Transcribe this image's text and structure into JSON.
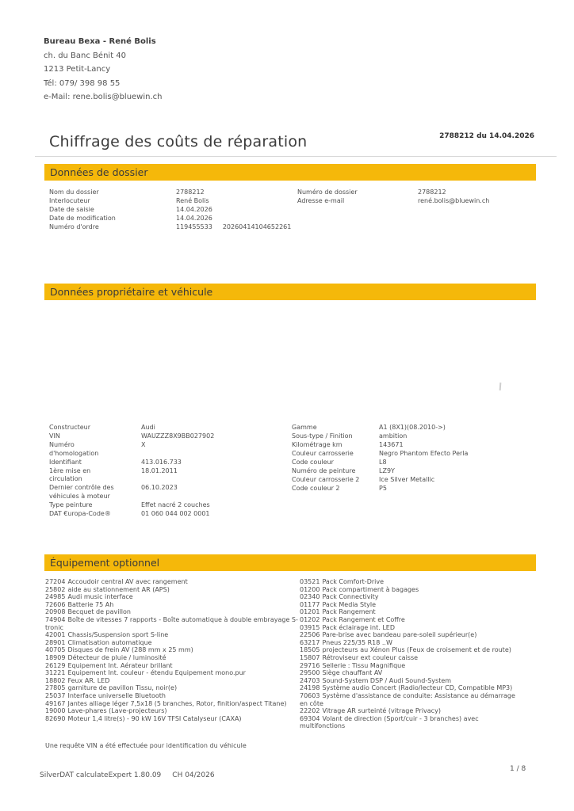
{
  "colors": {
    "accent_yellow": "#F5B80A",
    "section_heading_text": "#3A3A3A",
    "body_text": "#4F4F4F",
    "divider": "#D8D8D8"
  },
  "sender": {
    "name": "Bureau Bexa - René Bolis",
    "street": "ch. du Banc Bénit 40",
    "city": "1213 Petit-Lancy",
    "phone": "Tél: 079/ 398 98 55",
    "email": "e-Mail: rene.bolis@bluewin.ch"
  },
  "title": {
    "text": "Chiffrage des coûts de réparation",
    "reference": "2788212 du 14.04.2026"
  },
  "sections": {
    "dossier": {
      "heading": "Données de dossier",
      "fields_left": [
        {
          "label": "Nom du dossier",
          "value": "2788212",
          "value2": ""
        },
        {
          "label": "Interlocuteur",
          "value": "René Bolis",
          "value2": ""
        },
        {
          "label": "Date de saisie",
          "value": "14.04.2026",
          "value2": ""
        },
        {
          "label": "Date de modification",
          "value": "14.04.2026",
          "value2": ""
        },
        {
          "label": "Numéro d'ordre",
          "value": "119455533",
          "value2": "20260414104652261"
        }
      ],
      "fields_right": [
        {
          "label": "Numéro de dossier",
          "value": "2788212",
          "value2": ""
        },
        {
          "label": "Adresse e-mail",
          "value": "rené.bolis@bluewin.ch",
          "value2": ""
        }
      ]
    },
    "vehicle": {
      "heading": "Données propriétaire et véhicule",
      "fields_left": [
        {
          "label": "Constructeur",
          "value": "Audi",
          "value2": ""
        },
        {
          "label": "VIN",
          "value": "WAUZZZ8X9BB027902",
          "value2": ""
        },
        {
          "label": "Numéro d'homologation",
          "value": "X",
          "value2": ""
        },
        {
          "label": "Identifiant",
          "value": "413.016.733",
          "value2": ""
        },
        {
          "label": "1ère mise en circulation",
          "value": "18.01.2011",
          "value2": ""
        },
        {
          "label": "Dernier contrôle des véhicules à moteur",
          "value": "06.10.2023",
          "value2": ""
        },
        {
          "label": "Type peinture",
          "value": "Effet nacré 2 couches",
          "value2": ""
        },
        {
          "label": "DAT €uropa-Code®",
          "value": "01 060 044 002 0001",
          "value2": ""
        }
      ],
      "fields_right": [
        {
          "label": "Gamme",
          "value": "A1 (8X1)(08.2010->)",
          "value2": ""
        },
        {
          "label": "Sous-type / Finition",
          "value": "ambition",
          "value2": ""
        },
        {
          "label": "Kilométrage km",
          "value": "143671",
          "value2": ""
        },
        {
          "label": "Couleur carrosserie",
          "value": "Negro Phantom Efecto Perla",
          "value2": ""
        },
        {
          "label": "Code couleur",
          "value": "L8",
          "value2": ""
        },
        {
          "label": "Numéro de peinture",
          "value": "LZ9Y",
          "value2": ""
        },
        {
          "label": "Couleur carrosserie 2",
          "value": "Ice Silver Metallic",
          "value2": ""
        },
        {
          "label": "Code couleur 2",
          "value": "P5",
          "value2": ""
        }
      ]
    },
    "equipment": {
      "heading": "Équipement optionnel",
      "items_left": [
        {
          "code": "27204",
          "label": "Accoudoir central AV avec rangement"
        },
        {
          "code": "25802",
          "label": "aide au stationnement AR (APS)"
        },
        {
          "code": "24985",
          "label": "Audi music interface"
        },
        {
          "code": "72606",
          "label": "Batterie 75 Ah"
        },
        {
          "code": "20908",
          "label": "Becquet de pavillon"
        },
        {
          "code": "74904",
          "label": "Boîte de vitesses 7 rapports - Boîte automatique à double embrayage S-tronic"
        },
        {
          "code": "42001",
          "label": "Chassis/Suspension sport S-line"
        },
        {
          "code": "28901",
          "label": "Climatisation automatique"
        },
        {
          "code": "40705",
          "label": "Disques de frein AV (288 mm x 25 mm)"
        },
        {
          "code": "18909",
          "label": "Détecteur de pluie / luminosité"
        },
        {
          "code": "26129",
          "label": "Equipement Int. Aérateur brillant"
        },
        {
          "code": "31221",
          "label": "Equipement Int. couleur - étendu Equipement mono.pur"
        },
        {
          "code": "18802",
          "label": "Feux AR. LED"
        },
        {
          "code": "27805",
          "label": "garniture de pavillon Tissu, noir(e)"
        },
        {
          "code": "25037",
          "label": "Interface universelle Bluetooth"
        },
        {
          "code": "49167",
          "label": "Jantes alliage léger 7,5x18 (5 branches, Rotor, finition/aspect Titane)"
        },
        {
          "code": "19000",
          "label": "Lave-phares (Lave-projecteurs)"
        },
        {
          "code": "82690",
          "label": "Moteur 1,4 litre(s) - 90 kW 16V TFSI Catalyseur (CAXA)"
        }
      ],
      "items_right": [
        {
          "code": "03521",
          "label": "Pack Comfort-Drive"
        },
        {
          "code": "01200",
          "label": "Pack compartiment à bagages"
        },
        {
          "code": "02340",
          "label": "Pack Connectivity"
        },
        {
          "code": "01177",
          "label": "Pack Media Style"
        },
        {
          "code": "01201",
          "label": "Pack Rangement"
        },
        {
          "code": "01202",
          "label": "Pack Rangement et Coffre"
        },
        {
          "code": "03915",
          "label": "Pack éclairage int. LED"
        },
        {
          "code": "22506",
          "label": "Pare-brise avec bandeau pare-soleil supérieur(e)"
        },
        {
          "code": "63217",
          "label": "Pneus 225/35 R18 ..W"
        },
        {
          "code": "18505",
          "label": "projecteurs au Xénon Plus (Feux de croisement et de route)"
        },
        {
          "code": "15807",
          "label": "Rétroviseur ext couleur caisse"
        },
        {
          "code": "29716",
          "label": "Sellerie : Tissu Magnifique"
        },
        {
          "code": "29500",
          "label": "Siège chauffant AV"
        },
        {
          "code": "24703",
          "label": "Sound-System DSP / Audi Sound-System"
        },
        {
          "code": "24198",
          "label": "Système audio Concert (Radio/lecteur CD, Compatible MP3)"
        },
        {
          "code": "70603",
          "label": "Système d'assistance de conduite: Assistance au démarrage en côte"
        },
        {
          "code": "22202",
          "label": "Vitrage AR surteinté (vitrage Privacy)"
        },
        {
          "code": "69304",
          "label": "Volant de direction (Sport/cuir - 3 branches) avec multifonctions"
        }
      ]
    }
  },
  "note": "Une requête VIN a été effectuée pour identification du véhicule",
  "footer": {
    "app": "SilverDAT calculateExpert 1.80.09",
    "edition": "CH 04/2026",
    "page": "1 / 8"
  }
}
